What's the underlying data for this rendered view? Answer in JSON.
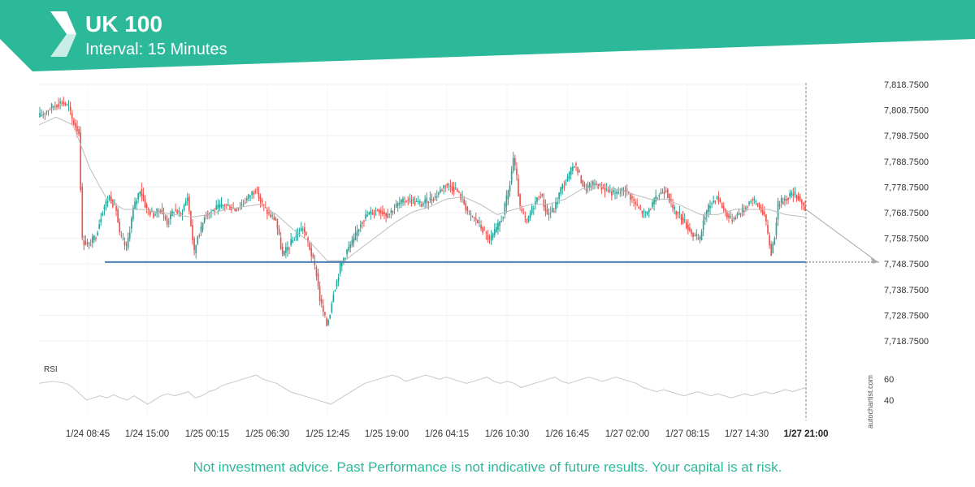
{
  "header": {
    "title": "UK 100",
    "subtitle": "Interval: 15 Minutes",
    "brand_color": "#2bb99a",
    "logo_icon": "autochartist-logo-icon"
  },
  "disclaimer": "Not investment advice. Past Performance is not indicative of future results. Your capital is at risk.",
  "watermark": "autochartist.com",
  "chart_data": {
    "type": "candlestick",
    "ylim": [
      7713,
      7822
    ],
    "yticks": [
      "7,818.7500",
      "7,808.7500",
      "7,798.7500",
      "7,788.7500",
      "7,778.7500",
      "7,768.7500",
      "7,758.7500",
      "7,748.7500",
      "7,738.7500",
      "7,728.7500",
      "7,718.7500"
    ],
    "ytick_values": [
      7818.75,
      7808.75,
      7798.75,
      7788.75,
      7778.75,
      7768.75,
      7758.75,
      7748.75,
      7738.75,
      7728.75,
      7718.75
    ],
    "xticks": [
      "1/24 08:45",
      "1/24 15:00",
      "1/25 00:15",
      "1/25 06:30",
      "1/25 12:45",
      "1/25 19:00",
      "1/26 04:15",
      "1/26 10:30",
      "1/26 16:45",
      "1/27 02:00",
      "1/27 08:15",
      "1/27 14:30",
      "1/27 21:00"
    ],
    "highlight_xtick": "1/27 21:00",
    "support_level": 7749.5,
    "projection_target": 7749.5,
    "up_color": "#26a69a",
    "down_color": "#ef5350",
    "support_color": "#4a7db5",
    "price_path": [
      [
        0,
        7806
      ],
      [
        8,
        7810
      ],
      [
        14,
        7812
      ],
      [
        18,
        7810
      ],
      [
        20,
        7805
      ],
      [
        24,
        7800
      ],
      [
        26,
        7758
      ],
      [
        30,
        7756
      ],
      [
        34,
        7760
      ],
      [
        38,
        7770
      ],
      [
        42,
        7775
      ],
      [
        46,
        7770
      ],
      [
        48,
        7760
      ],
      [
        52,
        7755
      ],
      [
        56,
        7770
      ],
      [
        60,
        7778
      ],
      [
        64,
        7770
      ],
      [
        68,
        7768
      ],
      [
        72,
        7770
      ],
      [
        76,
        7765
      ],
      [
        80,
        7770
      ],
      [
        84,
        7768
      ],
      [
        88,
        7775
      ],
      [
        92,
        7753
      ],
      [
        94,
        7760
      ],
      [
        96,
        7762
      ],
      [
        98,
        7768
      ],
      [
        104,
        7770
      ],
      [
        110,
        7772
      ],
      [
        116,
        7770
      ],
      [
        120,
        7772
      ],
      [
        124,
        7775
      ],
      [
        128,
        7778
      ],
      [
        132,
        7772
      ],
      [
        136,
        7768
      ],
      [
        140,
        7766
      ],
      [
        144,
        7752
      ],
      [
        148,
        7756
      ],
      [
        152,
        7760
      ],
      [
        156,
        7763
      ],
      [
        160,
        7755
      ],
      [
        162,
        7750
      ],
      [
        164,
        7745
      ],
      [
        166,
        7735
      ],
      [
        168,
        7730
      ],
      [
        170,
        7725
      ],
      [
        172,
        7730
      ],
      [
        174,
        7738
      ],
      [
        176,
        7742
      ],
      [
        178,
        7748
      ],
      [
        182,
        7754
      ],
      [
        186,
        7758
      ],
      [
        190,
        7765
      ],
      [
        194,
        7768
      ],
      [
        200,
        7770
      ],
      [
        206,
        7768
      ],
      [
        212,
        7772
      ],
      [
        218,
        7774
      ],
      [
        226,
        7772
      ],
      [
        234,
        7775
      ],
      [
        240,
        7780
      ],
      [
        246,
        7778
      ],
      [
        250,
        7774
      ],
      [
        254,
        7768
      ],
      [
        258,
        7766
      ],
      [
        262,
        7762
      ],
      [
        266,
        7758
      ],
      [
        270,
        7762
      ],
      [
        274,
        7768
      ],
      [
        278,
        7780
      ],
      [
        280,
        7790
      ],
      [
        282,
        7782
      ],
      [
        284,
        7770
      ],
      [
        288,
        7765
      ],
      [
        292,
        7772
      ],
      [
        296,
        7776
      ],
      [
        300,
        7768
      ],
      [
        304,
        7770
      ],
      [
        308,
        7778
      ],
      [
        312,
        7782
      ],
      [
        316,
        7788
      ],
      [
        318,
        7785
      ],
      [
        322,
        7778
      ],
      [
        328,
        7780
      ],
      [
        334,
        7778
      ],
      [
        340,
        7776
      ],
      [
        346,
        7778
      ],
      [
        350,
        7774
      ],
      [
        354,
        7770
      ],
      [
        358,
        7768
      ],
      [
        362,
        7772
      ],
      [
        366,
        7776
      ],
      [
        370,
        7778
      ],
      [
        374,
        7770
      ],
      [
        378,
        7768
      ],
      [
        382,
        7764
      ],
      [
        386,
        7760
      ],
      [
        390,
        7758
      ],
      [
        392,
        7766
      ],
      [
        396,
        7772
      ],
      [
        400,
        7775
      ],
      [
        404,
        7770
      ],
      [
        408,
        7766
      ],
      [
        412,
        7768
      ],
      [
        416,
        7770
      ],
      [
        420,
        7774
      ],
      [
        424,
        7772
      ],
      [
        426,
        7770
      ],
      [
        428,
        7768
      ],
      [
        430,
        7760
      ],
      [
        432,
        7753
      ],
      [
        434,
        7760
      ],
      [
        436,
        7772
      ],
      [
        440,
        7774
      ],
      [
        444,
        7776
      ],
      [
        448,
        7775
      ],
      [
        452,
        7770
      ]
    ],
    "ma_path": [
      [
        0,
        7803
      ],
      [
        10,
        7806
      ],
      [
        20,
        7803
      ],
      [
        30,
        7786
      ],
      [
        40,
        7774
      ],
      [
        50,
        7770
      ],
      [
        60,
        7770
      ],
      [
        70,
        7769
      ],
      [
        80,
        7768
      ],
      [
        90,
        7767
      ],
      [
        100,
        7768
      ],
      [
        110,
        7770
      ],
      [
        120,
        7771
      ],
      [
        130,
        7772
      ],
      [
        140,
        7768
      ],
      [
        150,
        7762
      ],
      [
        160,
        7757
      ],
      [
        170,
        7750
      ],
      [
        180,
        7750
      ],
      [
        190,
        7755
      ],
      [
        200,
        7760
      ],
      [
        210,
        7765
      ],
      [
        220,
        7769
      ],
      [
        230,
        7771
      ],
      [
        240,
        7774
      ],
      [
        250,
        7775
      ],
      [
        260,
        7772
      ],
      [
        270,
        7768
      ],
      [
        280,
        7770
      ],
      [
        290,
        7772
      ],
      [
        300,
        7772
      ],
      [
        310,
        7774
      ],
      [
        320,
        7778
      ],
      [
        330,
        7779
      ],
      [
        340,
        7778
      ],
      [
        350,
        7776
      ],
      [
        360,
        7774
      ],
      [
        370,
        7774
      ],
      [
        380,
        7771
      ],
      [
        390,
        7768
      ],
      [
        400,
        7768
      ],
      [
        410,
        7770
      ],
      [
        420,
        7770
      ],
      [
        430,
        7770
      ],
      [
        440,
        7768
      ],
      [
        452,
        7767
      ]
    ],
    "rsi": {
      "label": "RSI",
      "yticks": [
        "60",
        "40"
      ],
      "ytick_values": [
        60,
        40
      ],
      "ylim": [
        25,
        75
      ],
      "path": [
        [
          0,
          56
        ],
        [
          8,
          58
        ],
        [
          16,
          56
        ],
        [
          20,
          52
        ],
        [
          24,
          46
        ],
        [
          28,
          40
        ],
        [
          32,
          42
        ],
        [
          36,
          44
        ],
        [
          40,
          42
        ],
        [
          44,
          45
        ],
        [
          48,
          42
        ],
        [
          52,
          40
        ],
        [
          56,
          44
        ],
        [
          60,
          40
        ],
        [
          64,
          36
        ],
        [
          68,
          40
        ],
        [
          72,
          44
        ],
        [
          76,
          46
        ],
        [
          80,
          44
        ],
        [
          84,
          46
        ],
        [
          88,
          48
        ],
        [
          92,
          42
        ],
        [
          96,
          44
        ],
        [
          100,
          48
        ],
        [
          104,
          50
        ],
        [
          108,
          54
        ],
        [
          112,
          56
        ],
        [
          116,
          58
        ],
        [
          120,
          60
        ],
        [
          124,
          62
        ],
        [
          128,
          64
        ],
        [
          132,
          60
        ],
        [
          136,
          58
        ],
        [
          140,
          56
        ],
        [
          144,
          52
        ],
        [
          148,
          48
        ],
        [
          152,
          46
        ],
        [
          156,
          44
        ],
        [
          160,
          42
        ],
        [
          164,
          40
        ],
        [
          168,
          38
        ],
        [
          172,
          36
        ],
        [
          176,
          40
        ],
        [
          180,
          44
        ],
        [
          184,
          48
        ],
        [
          188,
          52
        ],
        [
          192,
          56
        ],
        [
          196,
          58
        ],
        [
          200,
          60
        ],
        [
          204,
          62
        ],
        [
          208,
          64
        ],
        [
          212,
          62
        ],
        [
          216,
          58
        ],
        [
          220,
          60
        ],
        [
          224,
          62
        ],
        [
          228,
          64
        ],
        [
          232,
          62
        ],
        [
          236,
          60
        ],
        [
          240,
          62
        ],
        [
          244,
          60
        ],
        [
          248,
          58
        ],
        [
          252,
          56
        ],
        [
          256,
          58
        ],
        [
          260,
          60
        ],
        [
          264,
          62
        ],
        [
          268,
          58
        ],
        [
          272,
          56
        ],
        [
          276,
          58
        ],
        [
          280,
          56
        ],
        [
          284,
          52
        ],
        [
          288,
          54
        ],
        [
          292,
          56
        ],
        [
          296,
          58
        ],
        [
          300,
          60
        ],
        [
          304,
          62
        ],
        [
          308,
          58
        ],
        [
          312,
          56
        ],
        [
          316,
          58
        ],
        [
          320,
          60
        ],
        [
          324,
          62
        ],
        [
          328,
          60
        ],
        [
          332,
          58
        ],
        [
          336,
          60
        ],
        [
          340,
          62
        ],
        [
          344,
          60
        ],
        [
          348,
          58
        ],
        [
          352,
          56
        ],
        [
          356,
          52
        ],
        [
          360,
          50
        ],
        [
          364,
          48
        ],
        [
          368,
          50
        ],
        [
          372,
          48
        ],
        [
          376,
          46
        ],
        [
          380,
          44
        ],
        [
          384,
          46
        ],
        [
          388,
          48
        ],
        [
          392,
          46
        ],
        [
          396,
          44
        ],
        [
          400,
          46
        ],
        [
          404,
          44
        ],
        [
          408,
          42
        ],
        [
          412,
          44
        ],
        [
          416,
          46
        ],
        [
          420,
          44
        ],
        [
          424,
          46
        ],
        [
          428,
          48
        ],
        [
          432,
          46
        ],
        [
          436,
          48
        ],
        [
          440,
          50
        ],
        [
          444,
          48
        ],
        [
          448,
          50
        ],
        [
          452,
          52
        ]
      ]
    }
  }
}
